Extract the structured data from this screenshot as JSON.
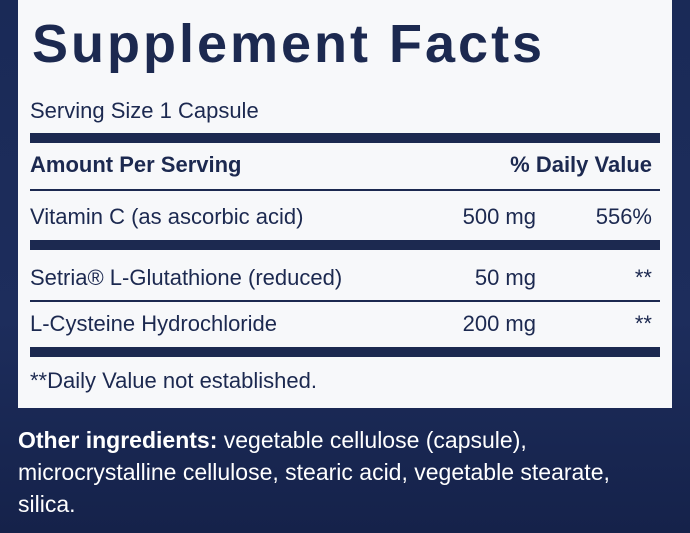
{
  "title": "Supplement Facts",
  "serving_size": "Serving Size 1 Capsule",
  "header": {
    "amount": "Amount Per Serving",
    "daily_value": "% Daily Value"
  },
  "rows": [
    {
      "name": "Vitamin C (as ascorbic acid)",
      "amount": "500 mg",
      "daily_value": "556%"
    },
    {
      "name": "Setria® L-Glutathione (reduced)",
      "amount": "50 mg",
      "daily_value": "**"
    },
    {
      "name": "L-Cysteine Hydrochloride",
      "amount": "200 mg",
      "daily_value": "**"
    }
  ],
  "footnote": "**Daily Value not established.",
  "other_ingredients": {
    "label": "Other ingredients:",
    "text": "vegetable cellulose (capsule), microcrystalline cellulose, stearic acid, vegetable stearate, silica."
  }
}
